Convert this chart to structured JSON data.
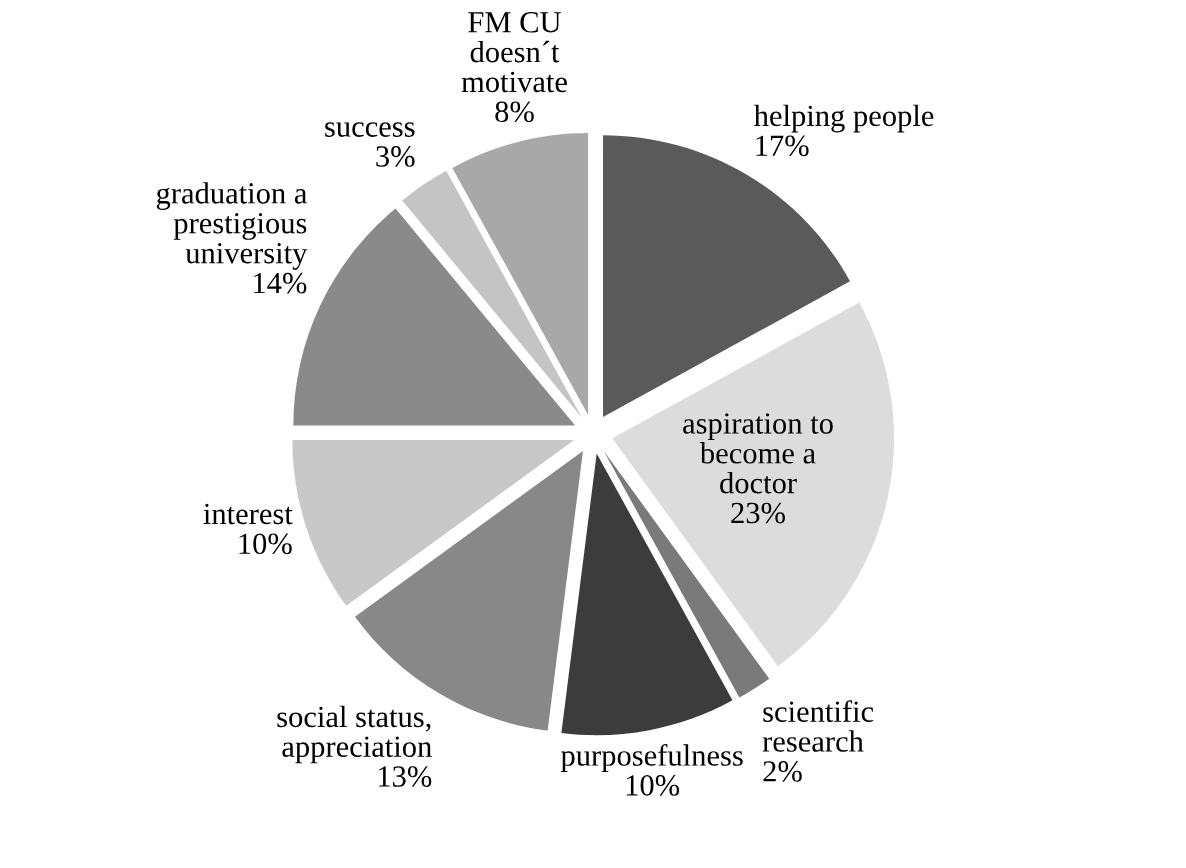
{
  "chart_data": {
    "type": "pie",
    "categories": [
      "helping people",
      "aspiration to\nbecome a\ndoctor",
      "scientific\nresearch",
      "purposefulness",
      "social status,\nappreciation",
      "interest",
      "graduation a\nprestigious\nuniversity",
      "success",
      "FM CU\ndoesn´t\nmotivate"
    ],
    "values": [
      17,
      23,
      2,
      10,
      13,
      10,
      14,
      3,
      8
    ],
    "value_labels": [
      "17%",
      "23%",
      "2%",
      "10%",
      "13%",
      "10%",
      "14%",
      "3%",
      "8%"
    ],
    "colors": [
      "#5a5a5a",
      "#dcdcdc",
      "#7a7a7a",
      "#3c3c3c",
      "#888888",
      "#c8c8c8",
      "#8a8a8a",
      "#c4c4c4",
      "#a8a8a8"
    ]
  }
}
